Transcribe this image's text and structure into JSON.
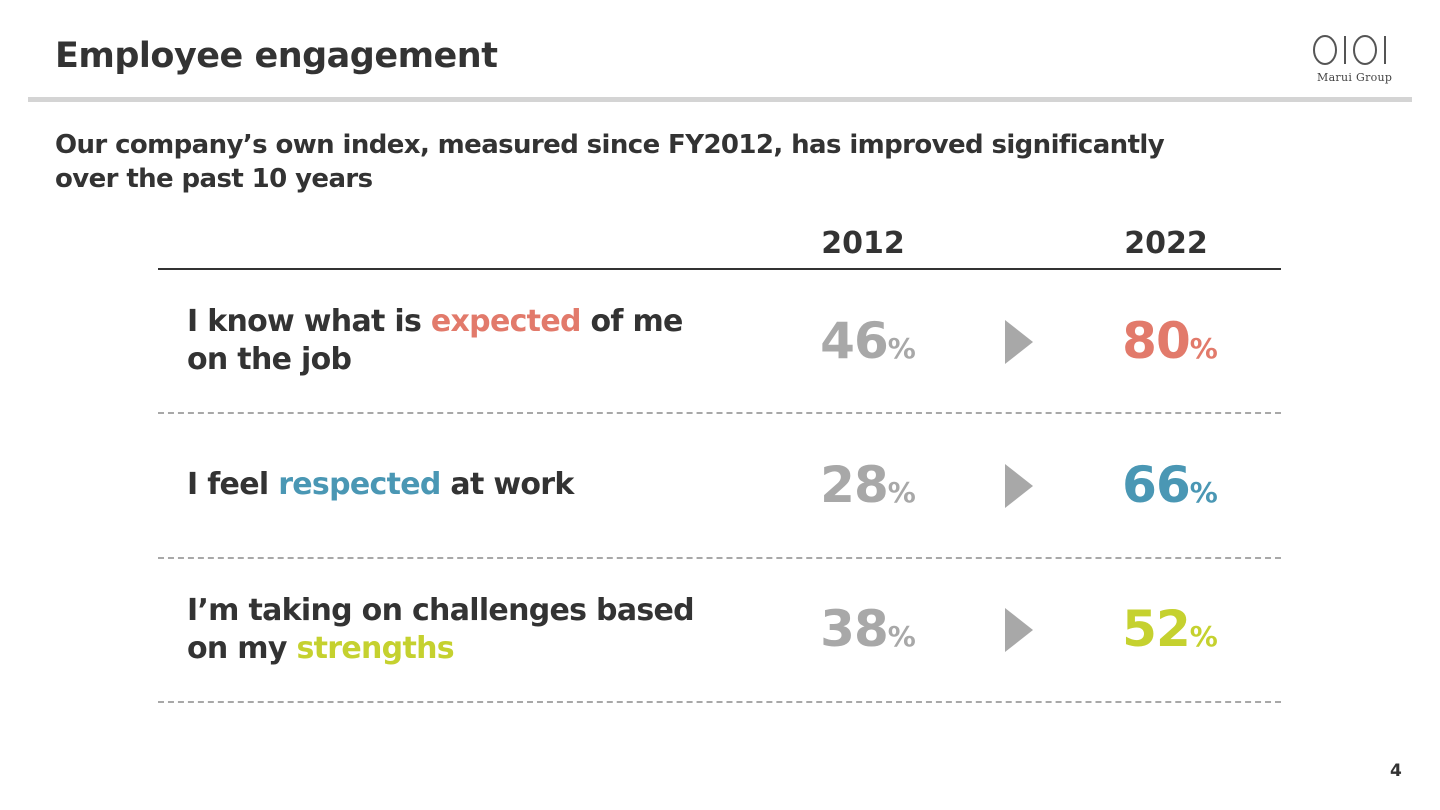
{
  "slide": {
    "title": "Employee engagement",
    "subtitle": "Our company’s own index, measured since FY2012, has improved significantly over the past 10 years",
    "page_number": "4"
  },
  "logo": {
    "mark": "OIOI",
    "text": "Marui Group"
  },
  "table": {
    "year_old": "2012",
    "year_new": "2022",
    "percent_sign": "%",
    "rows": [
      {
        "text_before": "I know what is ",
        "highlight": "expected",
        "text_after": " of me on the job",
        "value_2012": "46",
        "value_2022": "80",
        "accent": "#e27a6b"
      },
      {
        "text_before": "I feel ",
        "highlight": "respected",
        "text_after": " at work",
        "value_2012": "28",
        "value_2022": "66",
        "accent": "#4a97b4"
      },
      {
        "text_before": "I’m taking on challenges based on my ",
        "highlight": "strengths",
        "text_after": "",
        "value_2012": "38",
        "value_2022": "52",
        "accent": "#c5d12f"
      }
    ]
  },
  "colors": {
    "text": "#333333",
    "muted_value": "#a8a8a8",
    "arrow": "#a8a8a8",
    "rule": "#d4d4d4"
  },
  "icons": {
    "arrow": "triangle-right-icon"
  }
}
